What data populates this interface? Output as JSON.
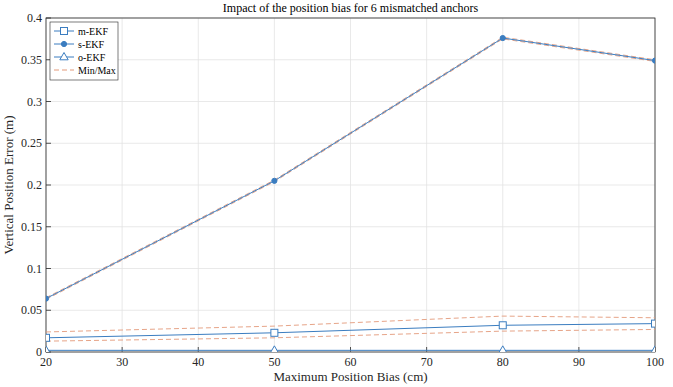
{
  "chart_data": {
    "type": "line",
    "title": "Impact of the position bias for 6 mismatched anchors",
    "x_label": "Maximum Position Bias (cm)",
    "y_label": "Vertical Position Error (m)",
    "x": [
      20,
      50,
      80,
      100
    ],
    "xlim": [
      20,
      100
    ],
    "xticks": [
      20,
      30,
      40,
      50,
      60,
      70,
      80,
      90,
      100
    ],
    "ylim": [
      0,
      0.4
    ],
    "yticks": [
      0,
      0.05,
      0.1,
      0.15,
      0.2,
      0.25,
      0.3,
      0.35,
      0.4
    ],
    "grid": true,
    "legend": "upper left",
    "series": [
      {
        "name": "m-EKF",
        "color": "#3b7dc0",
        "marker": "square",
        "line_style": "solid",
        "values": [
          0.017,
          0.023,
          0.032,
          0.034
        ]
      },
      {
        "name": "s-EKF",
        "color": "#3b7dc0",
        "marker": "dot",
        "line_style": "solid",
        "values": [
          0.064,
          0.205,
          0.376,
          0.349
        ]
      },
      {
        "name": "o-EKF",
        "color": "#3b7dc0",
        "marker": "triangle",
        "line_style": "solid",
        "values": [
          0.002,
          0.002,
          0.002,
          0.002
        ]
      },
      {
        "name": "Min/Max",
        "color": "#e39a7a",
        "marker": "none",
        "line_style": "dashed",
        "values": [
          0.024,
          0.031,
          0.043,
          0.041
        ]
      },
      {
        "name": "Min/Max",
        "color": "#e39a7a",
        "marker": "none",
        "line_style": "dashed",
        "values": [
          0.013,
          0.017,
          0.025,
          0.027
        ]
      },
      {
        "name": "Min/Max",
        "color": "#e39a7a",
        "marker": "none",
        "line_style": "dashed",
        "values": [
          0.065,
          0.206,
          0.377,
          0.35
        ]
      },
      {
        "name": "Min/Max",
        "color": "#e39a7a",
        "marker": "none",
        "line_style": "dashed",
        "values": [
          0.063,
          0.204,
          0.375,
          0.348
        ]
      }
    ]
  }
}
